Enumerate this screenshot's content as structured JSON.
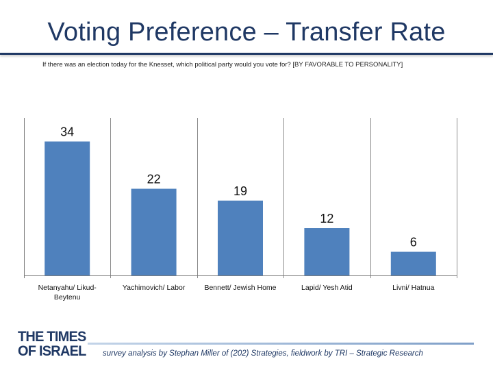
{
  "slide": {
    "title": "Voting Preference – Transfer Rate",
    "question": "If there was an election today for the Knesset, which political party would you vote for? [BY FAVORABLE TO PERSONALITY]",
    "logo": {
      "line1": "THE TIMES",
      "line2": "OF ISRAEL"
    },
    "footer": "survey analysis by Stephan Miller of (202) Strategies, fieldwork by TRI – Strategic Research"
  },
  "colors": {
    "bar": "#4f81bd",
    "title": "#1f3864"
  },
  "chart_data": {
    "type": "bar",
    "title": "",
    "xlabel": "",
    "ylabel": "",
    "categories": [
      [
        "Netanyahu/ Likud-",
        "Beytenu"
      ],
      [
        "Yachimovich/ Labor"
      ],
      [
        "Bennett/ Jewish Home"
      ],
      [
        "Lapid/ Yesh Atid"
      ],
      [
        "Livni/ Hatnua"
      ]
    ],
    "values": [
      34,
      22,
      19,
      12,
      6
    ],
    "ylim": [
      0,
      40
    ],
    "grid": "vertical",
    "legend": "none",
    "data_labels": true
  }
}
